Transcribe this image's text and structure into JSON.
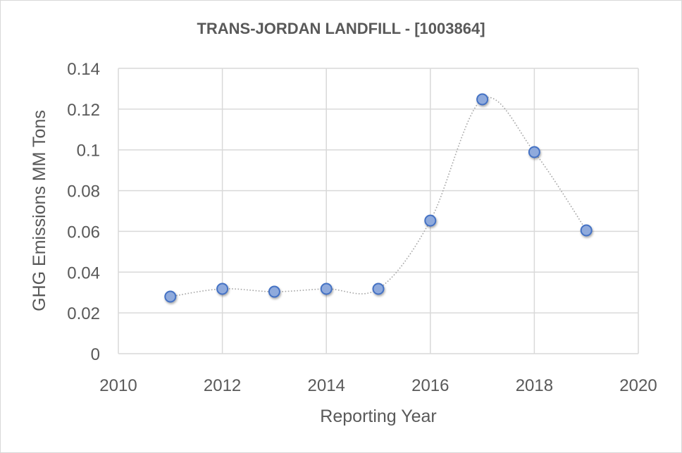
{
  "chart_data": {
    "type": "scatter",
    "title": "TRANS-JORDAN LANDFILL - [1003864]",
    "xlabel": "Reporting Year",
    "ylabel": "GHG Emissions MM Tons",
    "xlim": [
      2010,
      2020
    ],
    "ylim": [
      0,
      0.14
    ],
    "x_ticks": [
      "2010",
      "2012",
      "2014",
      "2016",
      "2018",
      "2020"
    ],
    "y_ticks": [
      "0",
      "0.02",
      "0.04",
      "0.06",
      "0.08",
      "0.1",
      "0.12",
      "0.14"
    ],
    "x_tick_values": [
      2010,
      2012,
      2014,
      2016,
      2018,
      2020
    ],
    "y_tick_values": [
      0,
      0.02,
      0.04,
      0.06,
      0.08,
      0.1,
      0.12,
      0.14
    ],
    "grid": true,
    "line_style": "smoothed dotted",
    "series": [
      {
        "name": "GHG Emissions",
        "x": [
          2011,
          2012,
          2013,
          2014,
          2015,
          2016,
          2017,
          2018,
          2019
        ],
        "values": [
          0.028,
          0.0318,
          0.0304,
          0.0318,
          0.0318,
          0.0653,
          0.1248,
          0.0989,
          0.0605
        ]
      }
    ],
    "colors": {
      "marker_fill": "#8faadc",
      "marker_stroke": "#4472c4",
      "line": "#a6a6a6",
      "grid": "#d9d9d9",
      "text": "#595959"
    }
  }
}
